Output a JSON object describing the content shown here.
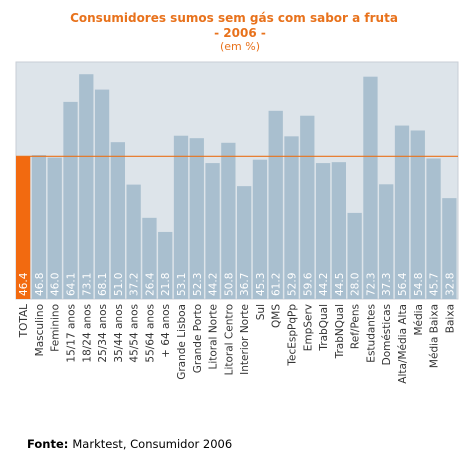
{
  "chart_data": {
    "type": "bar",
    "title": "Consumidores sumos sem gás com sabor a fruta",
    "subtitle": "- 2006 -",
    "unit": "(em %)",
    "categories": [
      "TOTAL",
      "Masculino",
      "Feminino",
      "15/17 anos",
      "18/24 anos",
      "25/34 anos",
      "35/44 anos",
      "45/54 anos",
      "55/64 anos",
      "+ 64 anos",
      "Grande Lisboa",
      "Grande Porto",
      "Litoral Norte",
      "Litoral Centro",
      "Interior Norte",
      "Sul",
      "QMS",
      "TecEspPqPp",
      "EmpServ",
      "TrabQual",
      "TrabNQual",
      "Ref/Pens",
      "Estudantes",
      "Domésticas",
      "Alta/Média Alta",
      "Média",
      "Média Baixa",
      "Baixa"
    ],
    "values": [
      46.4,
      46.8,
      46.0,
      64.1,
      73.1,
      68.1,
      51.0,
      37.2,
      26.4,
      21.8,
      53.1,
      52.3,
      44.2,
      50.8,
      36.7,
      45.3,
      61.2,
      52.9,
      59.6,
      44.2,
      44.5,
      28.0,
      72.3,
      37.3,
      56.4,
      54.8,
      45.7,
      32.8
    ],
    "value_labels": [
      "46.4",
      "46.8",
      "46.0",
      "64.1",
      "73.1",
      "68.1",
      "51.0",
      "37.2",
      "26.4",
      "21.8",
      "53.1",
      "52.3",
      "44.2",
      "50.8",
      "36.7",
      "45.3",
      "61.2",
      "52.9",
      "59.6",
      "44.2",
      "44.5",
      "28.0",
      "72.3",
      "37.3",
      "56.4",
      "54.8",
      "45.7",
      "32.8"
    ],
    "reference_line": 46.4,
    "ylim": [
      0,
      80
    ],
    "grid": false,
    "colors": {
      "highlight": "#f26a10",
      "bar": "#a9bfcf",
      "line": "#e8721c",
      "plot_bg": "#dde4ea",
      "frame": "#c8ced6"
    }
  },
  "source": {
    "label": "Fonte:",
    "text": "Marktest, Consumidor 2006"
  }
}
